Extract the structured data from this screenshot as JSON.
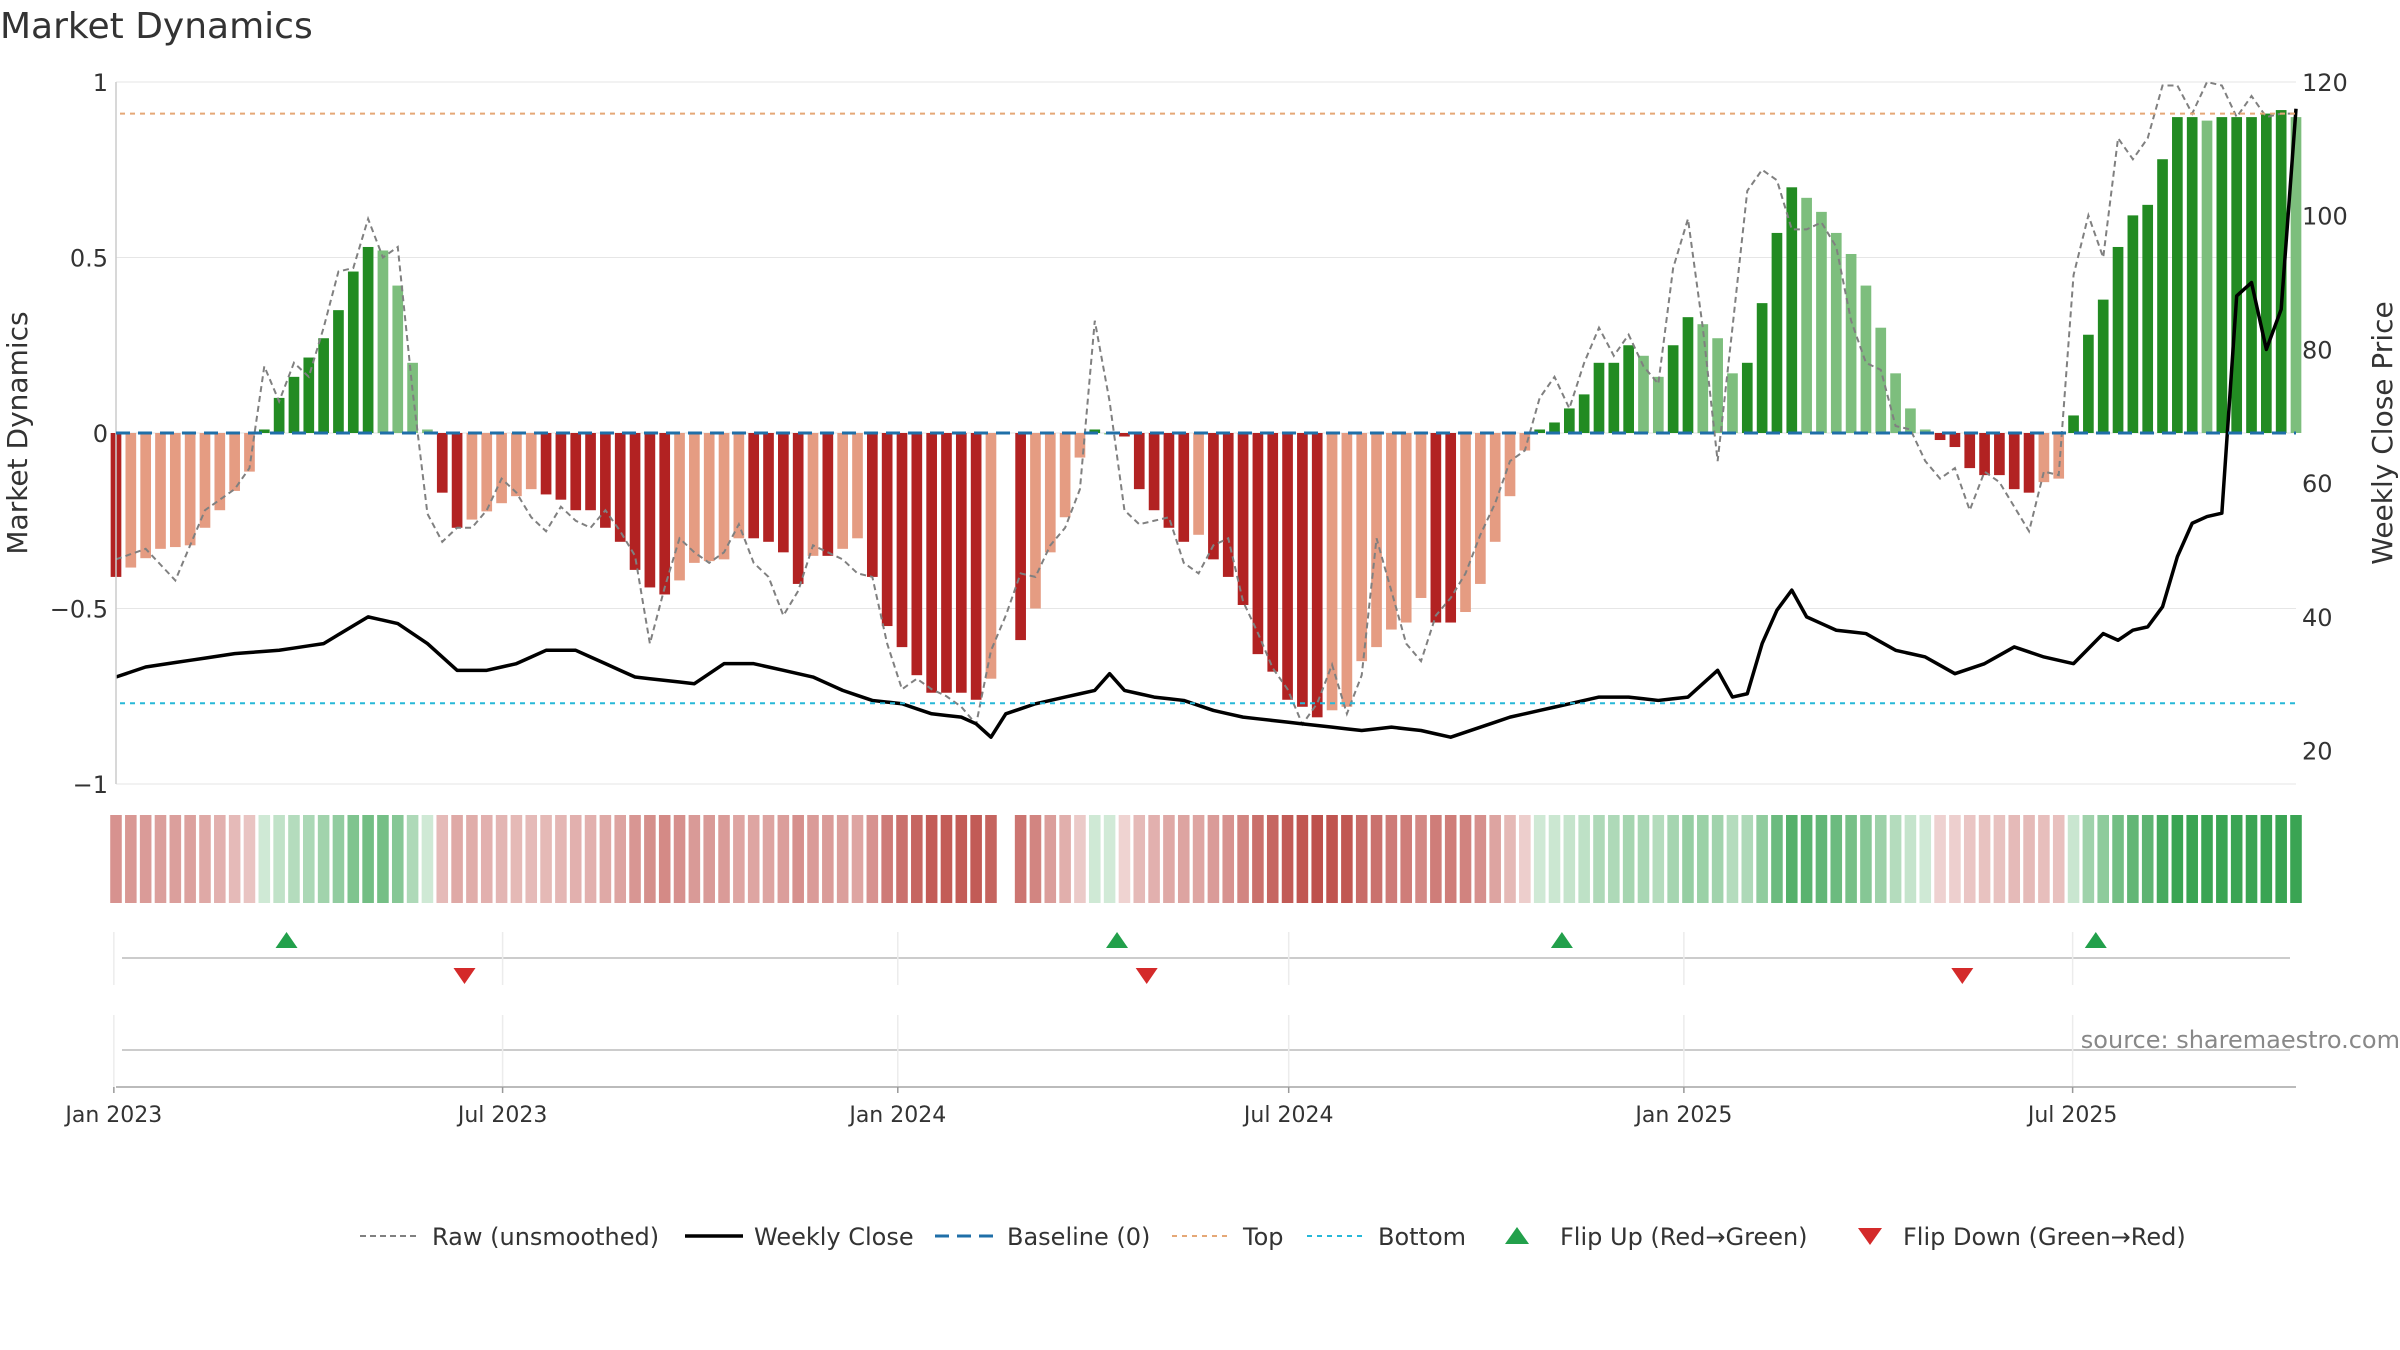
{
  "chart_data": {
    "type": "bar",
    "title": "Market Dynamics",
    "ylabel_left": "Market Dynamics",
    "ylabel_right": "Weekly Close Price",
    "ylim_left": [
      -1,
      1
    ],
    "ylim_right": [
      15,
      120
    ],
    "yticks_left": [
      {
        "v": 1,
        "label": "1"
      },
      {
        "v": 0.5,
        "label": "0.5"
      },
      {
        "v": 0,
        "label": "0"
      },
      {
        "v": -0.5,
        "label": "−0.5"
      },
      {
        "v": -1,
        "label": "−1"
      }
    ],
    "yticks_right": [
      {
        "v": 120,
        "label": "120"
      },
      {
        "v": 100,
        "label": "100"
      },
      {
        "v": 80,
        "label": "80"
      },
      {
        "v": 60,
        "label": "60"
      },
      {
        "v": 40,
        "label": "40"
      },
      {
        "v": 20,
        "label": "20"
      }
    ],
    "x_start": "2023-01-02",
    "x_end": "2025-10-13",
    "xticks": [
      {
        "date": "2023-01-01",
        "label": "Jan 2023"
      },
      {
        "date": "2023-07-01",
        "label": "Jul 2023"
      },
      {
        "date": "2024-01-01",
        "label": "Jan 2024"
      },
      {
        "date": "2024-07-01",
        "label": "Jul 2024"
      },
      {
        "date": "2025-01-01",
        "label": "Jan 2025"
      },
      {
        "date": "2025-07-01",
        "label": "Jul 2025"
      }
    ],
    "top_level": 0.91,
    "bottom_level": -0.77,
    "baseline": 0,
    "bar_anchors": [
      [
        0,
        -0.41
      ],
      [
        3,
        -0.33
      ],
      [
        5,
        -0.32
      ],
      [
        7,
        -0.22
      ],
      [
        9,
        -0.11
      ],
      [
        10,
        0.01
      ],
      [
        11,
        0.1
      ],
      [
        12,
        0.16
      ],
      [
        14,
        0.27
      ],
      [
        15,
        0.35
      ],
      [
        16,
        0.46
      ],
      [
        17,
        0.53
      ],
      [
        18,
        0.52
      ],
      [
        19,
        0.42
      ],
      [
        20,
        0.2
      ],
      [
        21,
        0.01
      ],
      [
        22,
        -0.17
      ],
      [
        23,
        -0.27
      ],
      [
        26,
        -0.2
      ],
      [
        28,
        -0.16
      ],
      [
        30,
        -0.19
      ],
      [
        31,
        -0.22
      ],
      [
        32,
        -0.22
      ],
      [
        33,
        -0.27
      ],
      [
        34,
        -0.31
      ],
      [
        35,
        -0.39
      ],
      [
        36,
        -0.44
      ],
      [
        37,
        -0.46
      ],
      [
        38,
        -0.42
      ],
      [
        39,
        -0.37
      ],
      [
        41,
        -0.36
      ],
      [
        42,
        -0.3
      ],
      [
        43,
        -0.3
      ],
      [
        44,
        -0.31
      ],
      [
        45,
        -0.34
      ],
      [
        46,
        -0.43
      ],
      [
        47,
        -0.35
      ],
      [
        48,
        -0.35
      ],
      [
        49,
        -0.33
      ],
      [
        50,
        -0.3
      ],
      [
        51,
        -0.41
      ],
      [
        52,
        -0.55
      ],
      [
        53,
        -0.61
      ],
      [
        54,
        -0.69
      ],
      [
        55,
        -0.74
      ],
      [
        56,
        -0.74
      ],
      [
        57,
        -0.74
      ],
      [
        58,
        -0.76
      ],
      [
        59,
        -0.7
      ],
      [
        60,
        null
      ],
      [
        61,
        -0.59
      ],
      [
        62,
        -0.5
      ],
      [
        63,
        -0.34
      ],
      [
        64,
        -0.24
      ],
      [
        65,
        -0.07
      ],
      [
        66,
        0.01
      ],
      [
        67,
        0.0
      ],
      [
        68,
        -0.01
      ],
      [
        69,
        -0.16
      ],
      [
        70,
        -0.22
      ],
      [
        71,
        -0.27
      ],
      [
        72,
        -0.31
      ],
      [
        73,
        -0.29
      ],
      [
        74,
        -0.36
      ],
      [
        75,
        -0.41
      ],
      [
        76,
        -0.49
      ],
      [
        77,
        -0.63
      ],
      [
        78,
        -0.68
      ],
      [
        79,
        -0.76
      ],
      [
        80,
        -0.78
      ],
      [
        81,
        -0.81
      ],
      [
        82,
        -0.79
      ],
      [
        83,
        -0.78
      ],
      [
        84,
        -0.65
      ],
      [
        85,
        -0.61
      ],
      [
        86,
        -0.56
      ],
      [
        87,
        -0.54
      ],
      [
        88,
        -0.47
      ],
      [
        89,
        -0.54
      ],
      [
        90,
        -0.54
      ],
      [
        91,
        -0.51
      ],
      [
        92,
        -0.43
      ],
      [
        93,
        -0.31
      ],
      [
        94,
        -0.18
      ],
      [
        95,
        -0.05
      ],
      [
        96,
        0.01
      ],
      [
        97,
        0.03
      ],
      [
        98,
        0.07
      ],
      [
        99,
        0.11
      ],
      [
        100,
        0.2
      ],
      [
        101,
        0.2
      ],
      [
        102,
        0.25
      ],
      [
        103,
        0.22
      ],
      [
        104,
        0.16
      ],
      [
        105,
        0.25
      ],
      [
        106,
        0.33
      ],
      [
        107,
        0.31
      ],
      [
        108,
        0.27
      ],
      [
        109,
        0.17
      ],
      [
        110,
        0.2
      ],
      [
        111,
        0.37
      ],
      [
        112,
        0.57
      ],
      [
        113,
        0.7
      ],
      [
        114,
        0.67
      ],
      [
        115,
        0.63
      ],
      [
        116,
        0.57
      ],
      [
        117,
        0.51
      ],
      [
        118,
        0.42
      ],
      [
        119,
        0.3
      ],
      [
        120,
        0.17
      ],
      [
        121,
        0.07
      ],
      [
        122,
        0.01
      ],
      [
        123,
        -0.02
      ],
      [
        124,
        -0.04
      ],
      [
        125,
        -0.1
      ],
      [
        126,
        -0.12
      ],
      [
        127,
        -0.12
      ],
      [
        128,
        -0.16
      ],
      [
        129,
        -0.17
      ],
      [
        130,
        -0.14
      ],
      [
        131,
        -0.13
      ],
      [
        132,
        0.05
      ],
      [
        133,
        0.28
      ],
      [
        134,
        0.38
      ],
      [
        135,
        0.53
      ],
      [
        136,
        0.62
      ],
      [
        137,
        0.65
      ],
      [
        138,
        0.78
      ],
      [
        139,
        0.9
      ],
      [
        140,
        0.9
      ],
      [
        141,
        0.89
      ],
      [
        142,
        0.9
      ],
      [
        143,
        0.9
      ],
      [
        144,
        0.9
      ],
      [
        145,
        0.91
      ],
      [
        146,
        0.92
      ],
      [
        147,
        0.9
      ]
    ],
    "bar_count": 148,
    "price_anchors": [
      [
        0,
        31
      ],
      [
        2,
        32.5
      ],
      [
        5,
        33.5
      ],
      [
        8,
        34.5
      ],
      [
        11,
        35
      ],
      [
        14,
        36
      ],
      [
        17,
        40
      ],
      [
        19,
        39
      ],
      [
        21,
        36
      ],
      [
        23,
        32
      ],
      [
        25,
        32
      ],
      [
        27,
        33
      ],
      [
        29,
        35
      ],
      [
        31,
        35
      ],
      [
        33,
        33
      ],
      [
        35,
        31
      ],
      [
        37,
        30.5
      ],
      [
        39,
        30
      ],
      [
        41,
        33
      ],
      [
        43,
        33
      ],
      [
        45,
        32
      ],
      [
        47,
        31
      ],
      [
        49,
        29
      ],
      [
        51,
        27.5
      ],
      [
        53,
        27
      ],
      [
        55,
        25.5
      ],
      [
        57,
        25
      ],
      [
        58,
        24
      ],
      [
        59,
        22
      ],
      [
        60,
        25.5
      ],
      [
        62,
        27
      ],
      [
        64,
        28
      ],
      [
        66,
        29
      ],
      [
        67,
        31.5
      ],
      [
        68,
        29
      ],
      [
        70,
        28
      ],
      [
        72,
        27.5
      ],
      [
        74,
        26
      ],
      [
        76,
        25
      ],
      [
        78,
        24.5
      ],
      [
        80,
        24
      ],
      [
        82,
        23.5
      ],
      [
        84,
        23
      ],
      [
        86,
        23.5
      ],
      [
        88,
        23
      ],
      [
        90,
        22
      ],
      [
        92,
        23.5
      ],
      [
        94,
        25
      ],
      [
        96,
        26
      ],
      [
        98,
        27
      ],
      [
        100,
        28
      ],
      [
        102,
        28
      ],
      [
        104,
        27.5
      ],
      [
        106,
        28
      ],
      [
        107,
        30
      ],
      [
        108,
        32
      ],
      [
        109,
        28
      ],
      [
        110,
        28.5
      ],
      [
        111,
        36
      ],
      [
        112,
        41
      ],
      [
        113,
        44
      ],
      [
        114,
        40
      ],
      [
        116,
        38
      ],
      [
        118,
        37.5
      ],
      [
        120,
        35
      ],
      [
        122,
        34
      ],
      [
        124,
        31.5
      ],
      [
        126,
        33
      ],
      [
        128,
        35.5
      ],
      [
        130,
        34
      ],
      [
        132,
        33
      ],
      [
        134,
        37.5
      ],
      [
        135,
        36.5
      ],
      [
        136,
        38
      ],
      [
        137,
        38.5
      ],
      [
        138,
        41.5
      ],
      [
        139,
        49
      ],
      [
        140,
        54
      ],
      [
        141,
        55
      ],
      [
        142,
        55.5
      ],
      [
        143,
        88
      ],
      [
        144,
        90
      ],
      [
        145,
        80
      ],
      [
        146,
        86
      ],
      [
        147,
        116
      ]
    ],
    "raw_anchors": [
      [
        0,
        -0.36
      ],
      [
        2,
        -0.33
      ],
      [
        4,
        -0.42
      ],
      [
        6,
        -0.22
      ],
      [
        8,
        -0.16
      ],
      [
        9,
        -0.1
      ],
      [
        10,
        0.19
      ],
      [
        11,
        0.09
      ],
      [
        12,
        0.2
      ],
      [
        13,
        0.16
      ],
      [
        14,
        0.3
      ],
      [
        15,
        0.46
      ],
      [
        16,
        0.47
      ],
      [
        17,
        0.61
      ],
      [
        18,
        0.5
      ],
      [
        19,
        0.53
      ],
      [
        20,
        0.12
      ],
      [
        21,
        -0.23
      ],
      [
        22,
        -0.31
      ],
      [
        23,
        -0.27
      ],
      [
        24,
        -0.27
      ],
      [
        25,
        -0.22
      ],
      [
        26,
        -0.13
      ],
      [
        27,
        -0.17
      ],
      [
        28,
        -0.24
      ],
      [
        29,
        -0.28
      ],
      [
        30,
        -0.21
      ],
      [
        31,
        -0.25
      ],
      [
        32,
        -0.27
      ],
      [
        33,
        -0.22
      ],
      [
        34,
        -0.28
      ],
      [
        35,
        -0.35
      ],
      [
        36,
        -0.6
      ],
      [
        37,
        -0.44
      ],
      [
        38,
        -0.3
      ],
      [
        39,
        -0.34
      ],
      [
        40,
        -0.37
      ],
      [
        41,
        -0.34
      ],
      [
        42,
        -0.26
      ],
      [
        43,
        -0.37
      ],
      [
        44,
        -0.41
      ],
      [
        45,
        -0.52
      ],
      [
        46,
        -0.45
      ],
      [
        47,
        -0.32
      ],
      [
        48,
        -0.34
      ],
      [
        49,
        -0.36
      ],
      [
        50,
        -0.4
      ],
      [
        51,
        -0.41
      ],
      [
        52,
        -0.6
      ],
      [
        53,
        -0.73
      ],
      [
        54,
        -0.7
      ],
      [
        55,
        -0.73
      ],
      [
        56,
        -0.75
      ],
      [
        57,
        -0.78
      ],
      [
        58,
        -0.83
      ],
      [
        59,
        -0.62
      ],
      [
        60,
        -0.52
      ],
      [
        61,
        -0.4
      ],
      [
        62,
        -0.41
      ],
      [
        63,
        -0.32
      ],
      [
        64,
        -0.27
      ],
      [
        65,
        -0.16
      ],
      [
        66,
        0.32
      ],
      [
        67,
        0.09
      ],
      [
        68,
        -0.22
      ],
      [
        69,
        -0.26
      ],
      [
        70,
        -0.25
      ],
      [
        71,
        -0.24
      ],
      [
        72,
        -0.37
      ],
      [
        73,
        -0.4
      ],
      [
        74,
        -0.32
      ],
      [
        75,
        -0.3
      ],
      [
        76,
        -0.48
      ],
      [
        77,
        -0.57
      ],
      [
        78,
        -0.67
      ],
      [
        79,
        -0.73
      ],
      [
        80,
        -0.83
      ],
      [
        81,
        -0.77
      ],
      [
        82,
        -0.66
      ],
      [
        83,
        -0.8
      ],
      [
        84,
        -0.69
      ],
      [
        85,
        -0.3
      ],
      [
        86,
        -0.45
      ],
      [
        87,
        -0.6
      ],
      [
        88,
        -0.65
      ],
      [
        89,
        -0.52
      ],
      [
        90,
        -0.47
      ],
      [
        91,
        -0.4
      ],
      [
        92,
        -0.29
      ],
      [
        93,
        -0.2
      ],
      [
        94,
        -0.08
      ],
      [
        95,
        -0.05
      ],
      [
        96,
        0.1
      ],
      [
        97,
        0.16
      ],
      [
        98,
        0.07
      ],
      [
        99,
        0.2
      ],
      [
        100,
        0.3
      ],
      [
        101,
        0.22
      ],
      [
        102,
        0.28
      ],
      [
        103,
        0.19
      ],
      [
        104,
        0.14
      ],
      [
        105,
        0.47
      ],
      [
        106,
        0.61
      ],
      [
        107,
        0.3
      ],
      [
        108,
        -0.08
      ],
      [
        109,
        0.3
      ],
      [
        110,
        0.69
      ],
      [
        111,
        0.75
      ],
      [
        112,
        0.72
      ],
      [
        113,
        0.58
      ],
      [
        114,
        0.58
      ],
      [
        115,
        0.6
      ],
      [
        116,
        0.53
      ],
      [
        117,
        0.32
      ],
      [
        118,
        0.2
      ],
      [
        119,
        0.18
      ],
      [
        120,
        0.02
      ],
      [
        121,
        0.01
      ],
      [
        122,
        -0.08
      ],
      [
        123,
        -0.13
      ],
      [
        124,
        -0.1
      ],
      [
        125,
        -0.22
      ],
      [
        126,
        -0.11
      ],
      [
        127,
        -0.14
      ],
      [
        128,
        -0.21
      ],
      [
        129,
        -0.28
      ],
      [
        130,
        -0.11
      ],
      [
        131,
        -0.12
      ],
      [
        132,
        0.45
      ],
      [
        133,
        0.62
      ],
      [
        134,
        0.5
      ],
      [
        135,
        0.84
      ],
      [
        136,
        0.78
      ],
      [
        137,
        0.84
      ],
      [
        138,
        0.99
      ],
      [
        139,
        0.99
      ],
      [
        140,
        0.91
      ],
      [
        141,
        1.0
      ],
      [
        142,
        0.99
      ],
      [
        143,
        0.9
      ],
      [
        144,
        0.96
      ],
      [
        145,
        0.9
      ],
      [
        146,
        0.91
      ],
      [
        147,
        0.91
      ]
    ],
    "flip_up_weeks": [
      10,
      66,
      96,
      132
    ],
    "flip_down_weeks": [
      22,
      68,
      123
    ],
    "colors": {
      "bull_strong": "#228b22",
      "bull_weak": "#7dbe7d",
      "bear_strong": "#b22222",
      "bear_weak": "#e59c82",
      "raw": "#808080",
      "close": "#000000",
      "baseline": "#1f6fa8",
      "top": "#e5a877",
      "bottom": "#26b8d8",
      "flip_up": "#22a04b",
      "flip_down": "#d42a2a",
      "grid": "#e6e6e6",
      "axis_text": "#333333"
    },
    "legend": [
      {
        "key": "raw",
        "label": "Raw (unsmoothed)"
      },
      {
        "key": "close",
        "label": "Weekly Close"
      },
      {
        "key": "baseline",
        "label": "Baseline (0)"
      },
      {
        "key": "top",
        "label": "Top"
      },
      {
        "key": "bottom",
        "label": "Bottom"
      },
      {
        "key": "flip_up",
        "label": "Flip Up (Red→Green)"
      },
      {
        "key": "flip_down",
        "label": "Flip Down (Green→Red)"
      }
    ],
    "source": "source: sharemaestro.com"
  }
}
